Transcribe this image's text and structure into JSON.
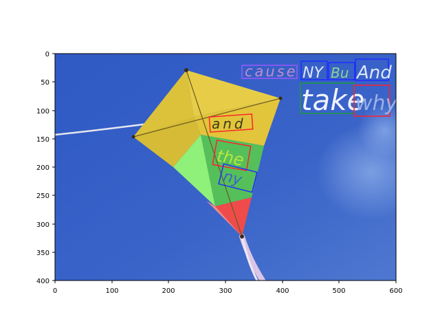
{
  "image": {
    "description_tags": [
      "kite",
      "blue-sky",
      "text-annotations"
    ],
    "sky_color": "#3a64c8",
    "kite_colors": {
      "yellow": "#e2c53a",
      "green": "#7fdc6e",
      "red": "#ef4b4b",
      "string": "#d9d9e6"
    }
  },
  "axes": {
    "x_ticks": [
      "0",
      "100",
      "200",
      "300",
      "400",
      "500",
      "600"
    ],
    "y_ticks": [
      "0",
      "50",
      "100",
      "150",
      "200",
      "250",
      "300",
      "350",
      "400"
    ],
    "xlim": [
      0,
      600
    ],
    "ylim": [
      400,
      0
    ]
  },
  "annotations": {
    "box_colors": {
      "purple": "#9b59ff",
      "blue": "#1f2bff",
      "green": "#1a9b3c",
      "red": "#ff1f2b"
    },
    "words": [
      {
        "text": "cause",
        "color": "purple"
      },
      {
        "text": "NY",
        "color": "blue"
      },
      {
        "text": "Bu",
        "color": "blue"
      },
      {
        "text": "And",
        "color": "blue"
      },
      {
        "text": "take",
        "color": "green"
      },
      {
        "text": "why",
        "color": "red"
      },
      {
        "text": "and",
        "color": "red"
      },
      {
        "text": "the",
        "color": "red"
      },
      {
        "text": "ny",
        "color": "blue"
      }
    ]
  }
}
